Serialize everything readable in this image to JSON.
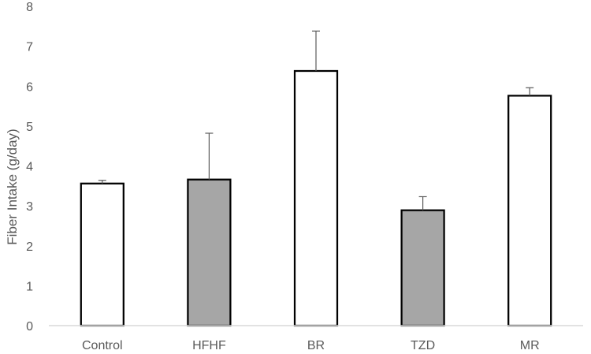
{
  "chart_data": {
    "type": "bar",
    "title": "",
    "xlabel": "",
    "ylabel": "Fiber Intake (g/day)",
    "ylim": [
      0,
      8
    ],
    "yticks": [
      0,
      1,
      2,
      3,
      4,
      5,
      6,
      7,
      8
    ],
    "grid": false,
    "categories": [
      "Control",
      "HFHF",
      "BR",
      "TZD",
      "MR"
    ],
    "values": [
      3.56,
      3.66,
      6.38,
      2.89,
      5.76
    ],
    "errors": [
      0.08,
      1.16,
      1.0,
      0.34,
      0.2
    ],
    "bar_colors": [
      "#ffffff",
      "#a6a6a6",
      "#ffffff",
      "#a6a6a6",
      "#ffffff"
    ],
    "bar_edge_color": "#000000",
    "error_bar_color": "#595959",
    "axis_color": "#d9d9d9"
  }
}
